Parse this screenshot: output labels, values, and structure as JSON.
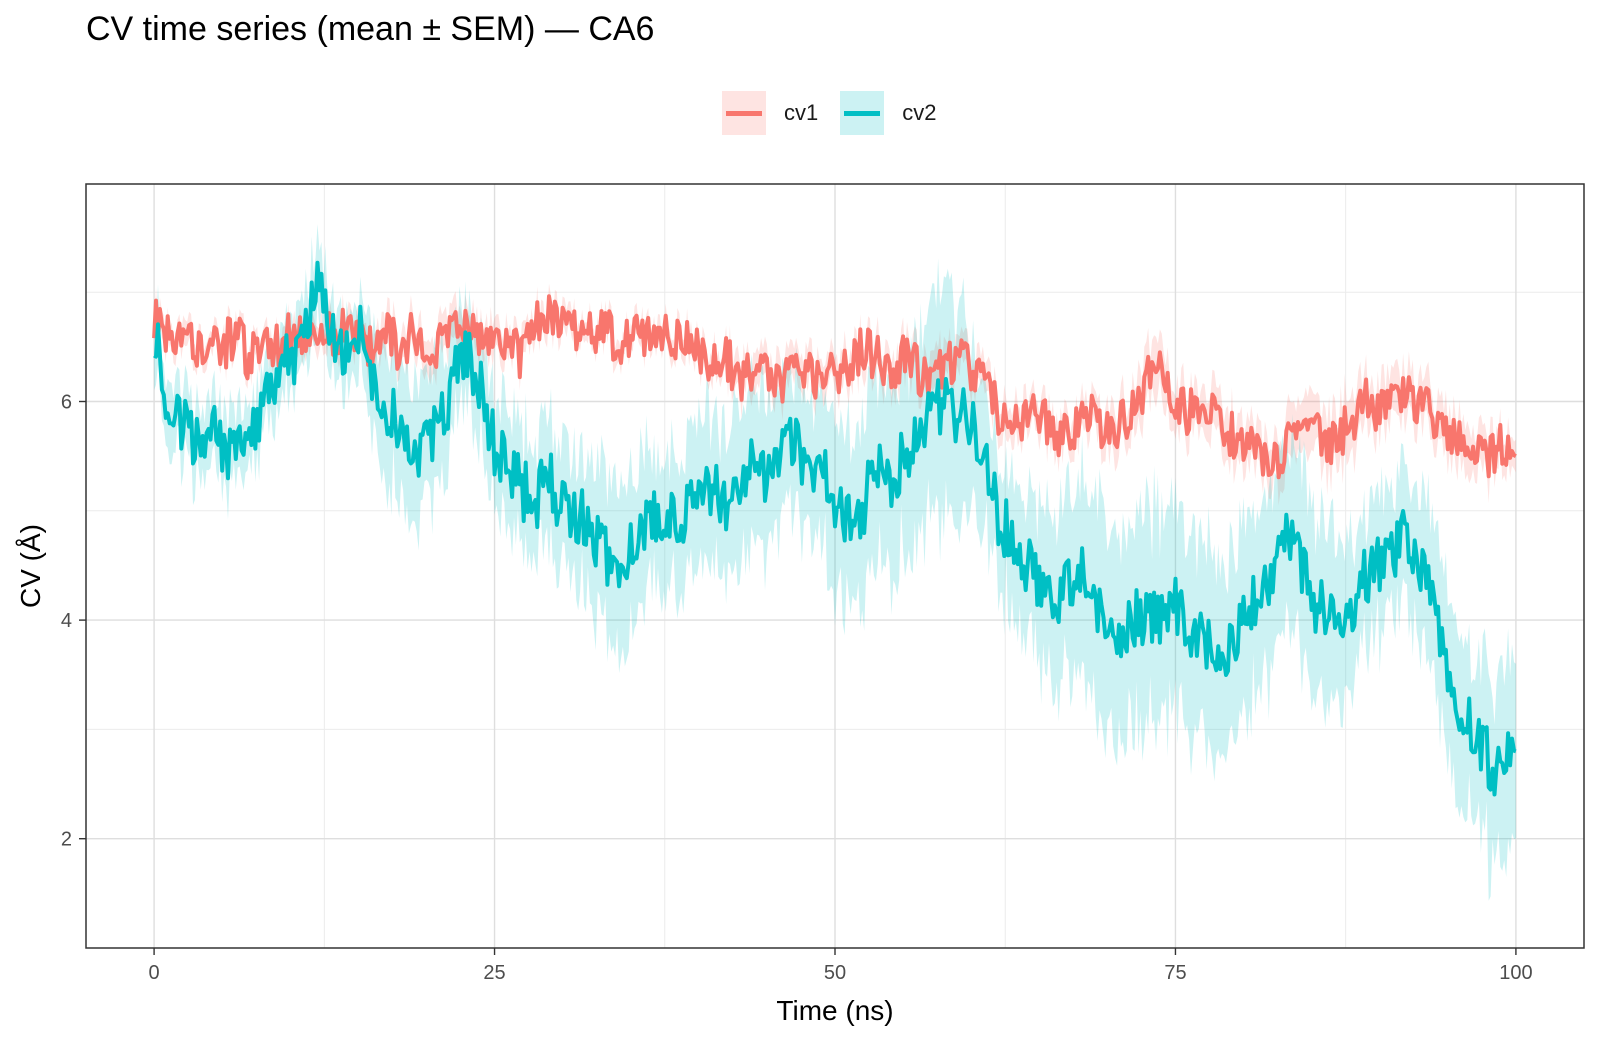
{
  "chart_data": {
    "type": "line",
    "title": "CV time series (mean ± SEM) — CA6",
    "xlabel": "Time (ns)",
    "ylabel": "CV (Å)",
    "xlim": [
      -5,
      105
    ],
    "ylim": [
      1.0,
      7.99
    ],
    "x_ticks": [
      0,
      25,
      50,
      75,
      100
    ],
    "x_tick_labels": [
      "0",
      "25",
      "50",
      "75",
      "100"
    ],
    "y_ticks": [
      2,
      4,
      6
    ],
    "y_tick_labels": [
      "2",
      "4",
      "6"
    ],
    "grid": true,
    "legend_position": "top",
    "series": [
      {
        "name": "cv1",
        "color": "#F8766D",
        "band_color": "#F8766D",
        "x": [
          0,
          1,
          2,
          3,
          4,
          5,
          6,
          7,
          8,
          9,
          10,
          11,
          12,
          13,
          14,
          15,
          16,
          17,
          18,
          19,
          20,
          21,
          22,
          23,
          24,
          25,
          26,
          27,
          28,
          29,
          30,
          31,
          32,
          33,
          34,
          35,
          36,
          37,
          38,
          39,
          40,
          41,
          42,
          43,
          44,
          45,
          46,
          47,
          48,
          49,
          50,
          51,
          52,
          53,
          54,
          55,
          56,
          57,
          58,
          59,
          60,
          61,
          62,
          63,
          64,
          65,
          66,
          67,
          68,
          69,
          70,
          71,
          72,
          73,
          74,
          75,
          76,
          77,
          78,
          79,
          80,
          81,
          82,
          83,
          84,
          85,
          86,
          87,
          88,
          89,
          90,
          91,
          92,
          93,
          94,
          95,
          96,
          97,
          98,
          99,
          100
        ],
        "y": [
          6.8,
          6.6,
          6.7,
          6.5,
          6.6,
          6.5,
          6.6,
          6.4,
          6.6,
          6.5,
          6.6,
          6.6,
          6.7,
          6.6,
          6.7,
          6.6,
          6.5,
          6.6,
          6.5,
          6.6,
          6.5,
          6.5,
          6.6,
          6.7,
          6.6,
          6.5,
          6.6,
          6.4,
          6.7,
          6.8,
          6.7,
          6.6,
          6.6,
          6.7,
          6.5,
          6.6,
          6.6,
          6.7,
          6.5,
          6.6,
          6.5,
          6.3,
          6.4,
          6.2,
          6.3,
          6.2,
          6.1,
          6.3,
          6.3,
          6.2,
          6.3,
          6.3,
          6.5,
          6.4,
          6.3,
          6.4,
          6.3,
          6.2,
          6.3,
          6.4,
          6.3,
          6.3,
          5.9,
          5.8,
          5.8,
          5.9,
          5.7,
          5.7,
          5.8,
          5.9,
          5.7,
          5.8,
          6.0,
          6.2,
          6.3,
          6.0,
          5.9,
          6.0,
          5.8,
          5.7,
          5.6,
          5.5,
          5.4,
          5.5,
          5.8,
          5.9,
          5.6,
          5.7,
          5.8,
          6.0,
          5.9,
          6.0,
          6.1,
          6.0,
          5.8,
          5.7,
          5.6,
          5.5,
          5.5,
          5.6,
          5.5
        ],
        "sem": [
          0.1,
          0.1,
          0.1,
          0.1,
          0.1,
          0.1,
          0.1,
          0.1,
          0.1,
          0.1,
          0.1,
          0.12,
          0.12,
          0.12,
          0.12,
          0.12,
          0.15,
          0.15,
          0.15,
          0.15,
          0.15,
          0.15,
          0.15,
          0.15,
          0.15,
          0.15,
          0.12,
          0.12,
          0.12,
          0.12,
          0.12,
          0.1,
          0.1,
          0.1,
          0.1,
          0.1,
          0.1,
          0.1,
          0.1,
          0.1,
          0.1,
          0.12,
          0.12,
          0.15,
          0.15,
          0.15,
          0.15,
          0.15,
          0.15,
          0.15,
          0.15,
          0.15,
          0.15,
          0.15,
          0.15,
          0.15,
          0.15,
          0.15,
          0.15,
          0.15,
          0.15,
          0.15,
          0.15,
          0.15,
          0.15,
          0.15,
          0.15,
          0.15,
          0.15,
          0.15,
          0.2,
          0.2,
          0.2,
          0.25,
          0.25,
          0.2,
          0.2,
          0.2,
          0.2,
          0.2,
          0.2,
          0.2,
          0.2,
          0.2,
          0.25,
          0.25,
          0.25,
          0.25,
          0.25,
          0.25,
          0.2,
          0.2,
          0.2,
          0.2,
          0.2,
          0.2,
          0.2,
          0.2,
          0.2,
          0.15,
          0.15
        ]
      },
      {
        "name": "cv2",
        "color": "#00BFC4",
        "band_color": "#00BFC4",
        "x": [
          0,
          1,
          2,
          3,
          4,
          5,
          6,
          7,
          8,
          9,
          10,
          11,
          12,
          13,
          14,
          15,
          16,
          17,
          18,
          19,
          20,
          21,
          22,
          23,
          24,
          25,
          26,
          27,
          28,
          29,
          30,
          31,
          32,
          33,
          34,
          35,
          36,
          37,
          38,
          39,
          40,
          41,
          42,
          43,
          44,
          45,
          46,
          47,
          48,
          49,
          50,
          51,
          52,
          53,
          54,
          55,
          56,
          57,
          58,
          59,
          60,
          61,
          62,
          63,
          64,
          65,
          66,
          67,
          68,
          69,
          70,
          71,
          72,
          73,
          74,
          75,
          76,
          77,
          78,
          79,
          80,
          81,
          82,
          83,
          84,
          85,
          86,
          87,
          88,
          89,
          90,
          91,
          92,
          93,
          94,
          95,
          96,
          97,
          98,
          99,
          100
        ],
        "y": [
          6.7,
          6.0,
          5.8,
          5.6,
          5.8,
          5.6,
          5.5,
          5.6,
          6.0,
          6.2,
          6.4,
          6.5,
          7.1,
          6.6,
          6.4,
          6.7,
          6.2,
          6.0,
          5.8,
          5.6,
          5.6,
          5.8,
          6.2,
          6.4,
          6.1,
          5.6,
          5.4,
          5.2,
          5.1,
          5.3,
          5.0,
          5.0,
          4.8,
          4.6,
          4.4,
          4.6,
          4.9,
          5.0,
          4.9,
          5.0,
          5.1,
          5.2,
          5.0,
          5.3,
          5.4,
          5.3,
          5.5,
          5.6,
          5.3,
          5.4,
          5.1,
          4.9,
          5.0,
          5.4,
          5.2,
          5.5,
          5.7,
          5.9,
          6.0,
          5.9,
          5.8,
          5.5,
          4.9,
          4.8,
          4.5,
          4.4,
          4.2,
          4.3,
          4.5,
          4.1,
          4.0,
          3.9,
          4.0,
          4.1,
          4.0,
          4.1,
          3.9,
          3.8,
          3.6,
          3.7,
          4.0,
          4.2,
          4.4,
          4.8,
          4.6,
          4.2,
          4.1,
          4.0,
          4.1,
          4.4,
          4.5,
          4.6,
          4.8,
          4.5,
          4.0,
          3.6,
          3.2,
          3.0,
          2.7,
          2.6,
          2.8
        ],
        "sem": [
          0.3,
          0.3,
          0.3,
          0.3,
          0.3,
          0.3,
          0.3,
          0.3,
          0.3,
          0.3,
          0.3,
          0.3,
          0.35,
          0.3,
          0.3,
          0.3,
          0.45,
          0.55,
          0.6,
          0.6,
          0.55,
          0.5,
          0.45,
          0.4,
          0.45,
          0.45,
          0.5,
          0.5,
          0.5,
          0.55,
          0.55,
          0.6,
          0.6,
          0.65,
          0.7,
          0.7,
          0.65,
          0.6,
          0.55,
          0.6,
          0.65,
          0.65,
          0.65,
          0.7,
          0.7,
          0.65,
          0.6,
          0.6,
          0.6,
          0.65,
          0.75,
          0.8,
          0.8,
          0.8,
          0.8,
          0.8,
          0.85,
          0.9,
          0.95,
          0.9,
          0.8,
          0.6,
          0.55,
          0.6,
          0.65,
          0.7,
          0.75,
          0.75,
          0.8,
          0.85,
          0.9,
          0.9,
          0.9,
          0.9,
          0.9,
          0.9,
          0.85,
          0.85,
          0.85,
          0.85,
          0.85,
          0.85,
          0.85,
          0.8,
          0.8,
          0.8,
          0.75,
          0.7,
          0.65,
          0.6,
          0.6,
          0.6,
          0.6,
          0.65,
          0.7,
          0.75,
          0.75,
          0.75,
          0.8,
          0.8,
          0.8
        ]
      }
    ]
  }
}
